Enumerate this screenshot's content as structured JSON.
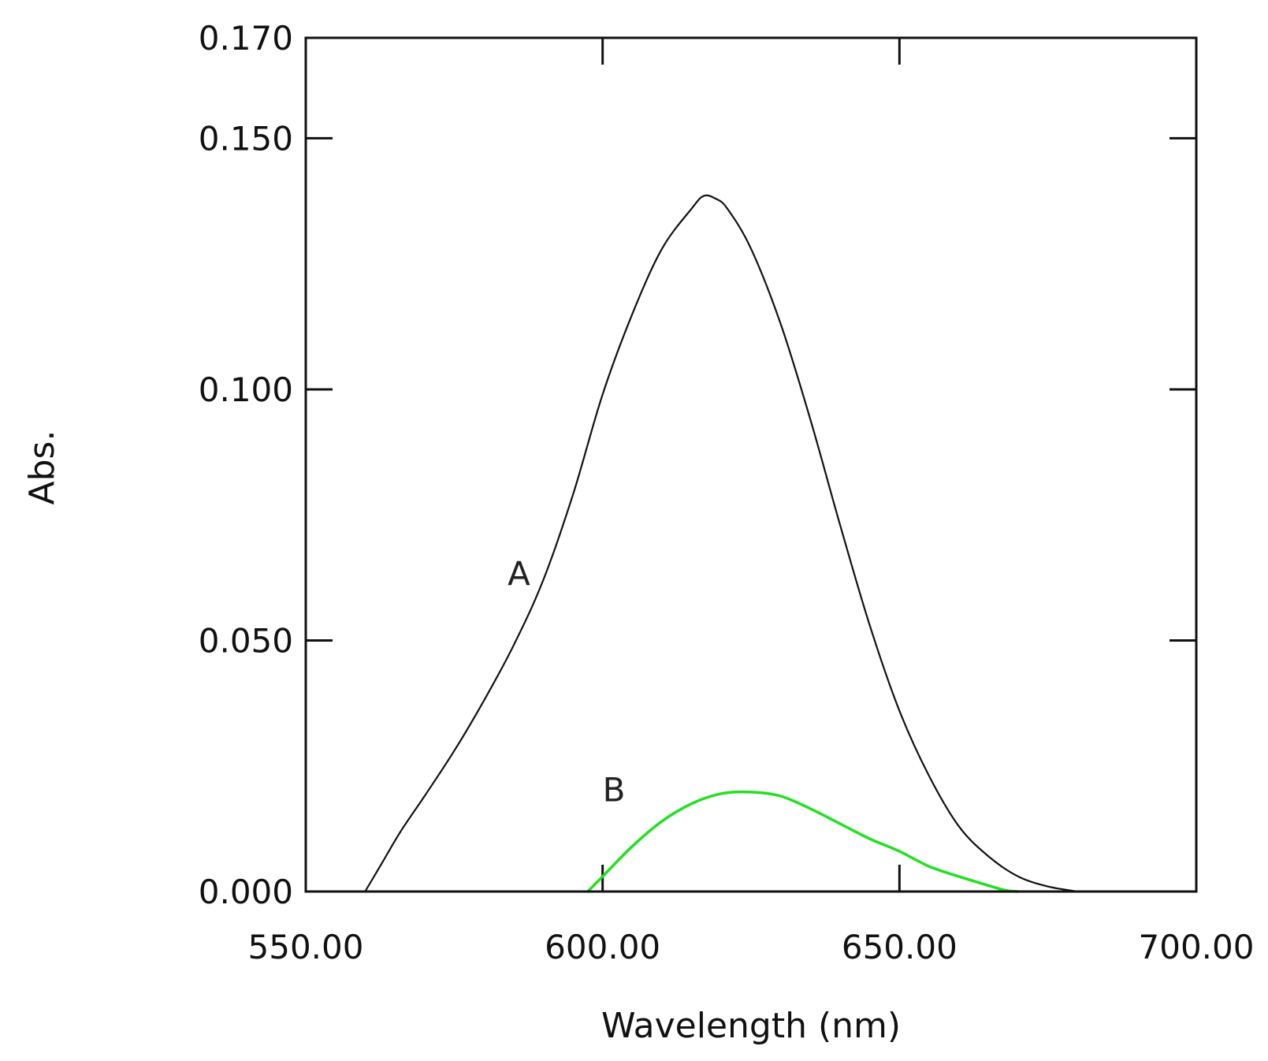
{
  "chart_data": {
    "type": "line",
    "title": "",
    "xlabel": "Wavelength (nm)",
    "ylabel": "Abs.",
    "xlim": [
      550,
      700
    ],
    "ylim": [
      0,
      0.17
    ],
    "x_ticks": [
      550,
      600,
      650,
      700
    ],
    "x_tick_labels": [
      "550.00",
      "600.00",
      "650.00",
      "700.00"
    ],
    "y_ticks": [
      0,
      0.05,
      0.1,
      0.15,
      0.17
    ],
    "y_tick_labels": [
      "0.000",
      "0.050",
      "0.100",
      "0.150",
      "0.170"
    ],
    "grid": false,
    "series": [
      {
        "label": "A",
        "color": "#111111",
        "label_at": [
          584,
          0.061
        ],
        "x": [
          560,
          563,
          566,
          570,
          575,
          580,
          585,
          590,
          595,
          600,
          605,
          610,
          615,
          617,
          619,
          621,
          625,
          630,
          635,
          640,
          645,
          650,
          655,
          660,
          665,
          670,
          675,
          680
        ],
        "y": [
          0.0,
          0.006,
          0.012,
          0.019,
          0.028,
          0.038,
          0.049,
          0.062,
          0.079,
          0.099,
          0.115,
          0.128,
          0.136,
          0.1385,
          0.138,
          0.136,
          0.128,
          0.113,
          0.094,
          0.073,
          0.053,
          0.036,
          0.023,
          0.013,
          0.007,
          0.003,
          0.001,
          0.0
        ]
      },
      {
        "label": "B",
        "color": "#22e022",
        "label_at": [
          600,
          0.018
        ],
        "x": [
          597.5,
          600,
          605,
          610,
          615,
          620,
          625,
          630,
          635,
          640,
          645,
          650,
          655,
          660,
          665,
          668,
          670
        ],
        "y": [
          0.0,
          0.003,
          0.009,
          0.014,
          0.0175,
          0.0195,
          0.0198,
          0.019,
          0.0165,
          0.0135,
          0.0105,
          0.008,
          0.005,
          0.003,
          0.0012,
          0.0002,
          0.0
        ]
      }
    ]
  }
}
